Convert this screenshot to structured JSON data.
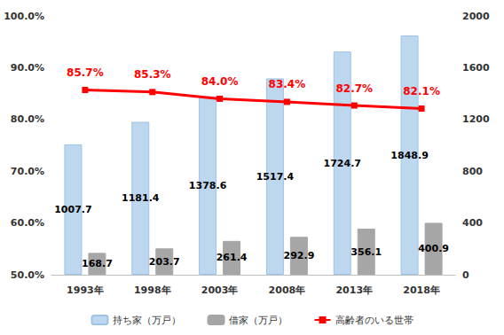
{
  "chart_data": {
    "type": "bar",
    "categories": [
      "1993年",
      "1998年",
      "2003年",
      "2008年",
      "2013年",
      "2018年"
    ],
    "series": [
      {
        "name": "持ち家（万戸）",
        "type": "bar",
        "axis": "y2",
        "color": "#bdd7ee",
        "values": [
          1007.7,
          1181.4,
          1378.6,
          1517.4,
          1724.7,
          1848.9
        ]
      },
      {
        "name": "借家（万戸）",
        "type": "bar",
        "axis": "y2",
        "color": "#a6a6a6",
        "values": [
          168.7,
          203.7,
          261.4,
          292.9,
          356.1,
          400.9
        ]
      },
      {
        "name": "高齢者のいる世帯",
        "type": "line",
        "axis": "y",
        "color": "#ff0000",
        "marker": "square",
        "values": [
          85.7,
          85.3,
          84.0,
          83.4,
          82.7,
          82.1
        ],
        "value_labels": [
          "85.7%",
          "85.3%",
          "84.0%",
          "83.4%",
          "82.7%",
          "82.1%"
        ]
      }
    ],
    "ylim": [
      50,
      100
    ],
    "yticks": [
      {
        "value": 50,
        "label": "50.0%"
      },
      {
        "value": 60,
        "label": "60.0%"
      },
      {
        "value": 70,
        "label": "70.0%"
      },
      {
        "value": 80,
        "label": "80.0%"
      },
      {
        "value": 90,
        "label": "90.0%"
      },
      {
        "value": 100,
        "label": "100.0%"
      }
    ],
    "y2lim": [
      0,
      2000
    ],
    "y2ticks": [
      0,
      400,
      800,
      1200,
      1600,
      2000
    ],
    "grid": false,
    "legend": "bottom",
    "data_labels": true
  }
}
